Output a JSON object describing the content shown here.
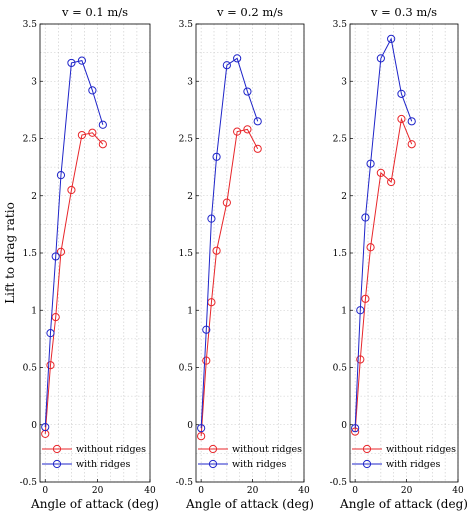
{
  "chart_data": [
    {
      "type": "line",
      "title": "v = 0.1 m/s",
      "xlabel": "Angle of attack (deg)",
      "ylabel": "Lift to drag ratio",
      "xlim": [
        -2,
        40
      ],
      "ylim": [
        -0.5,
        3.5
      ],
      "xticks": [
        "0",
        "20",
        "40"
      ],
      "yticks": [
        "-0.5",
        "0",
        "0.5",
        "1",
        "1.5",
        "2",
        "2.5",
        "3",
        "3.5"
      ],
      "grid": true,
      "legend": "bottom",
      "series": [
        {
          "name": "without ridges",
          "color": "#e8262a",
          "x": [
            0,
            2,
            4,
            6,
            10,
            14,
            18,
            22
          ],
          "y": [
            -0.08,
            0.52,
            0.94,
            1.51,
            2.05,
            2.53,
            2.55,
            2.45
          ]
        },
        {
          "name": "with ridges",
          "color": "#1f25c9",
          "x": [
            0,
            2,
            4,
            6,
            10,
            14,
            18,
            22
          ],
          "y": [
            -0.02,
            0.8,
            1.47,
            2.18,
            3.16,
            3.18,
            2.92,
            2.62
          ]
        }
      ]
    },
    {
      "type": "line",
      "title": "v = 0.2 m/s",
      "xlabel": "Angle of attack (deg)",
      "ylabel": "",
      "xlim": [
        -2,
        40
      ],
      "ylim": [
        -0.5,
        3.5
      ],
      "xticks": [
        "0",
        "20",
        "40"
      ],
      "yticks": [
        "-0.5",
        "0",
        "0.5",
        "1",
        "1.5",
        "2",
        "2.5",
        "3",
        "3.5"
      ],
      "grid": true,
      "legend": "bottom",
      "series": [
        {
          "name": "without ridges",
          "color": "#e8262a",
          "x": [
            0,
            2,
            4,
            6,
            10,
            14,
            18,
            22
          ],
          "y": [
            -0.1,
            0.56,
            1.07,
            1.52,
            1.94,
            2.56,
            2.58,
            2.41
          ]
        },
        {
          "name": "with ridges",
          "color": "#1f25c9",
          "x": [
            0,
            2,
            4,
            6,
            10,
            14,
            18,
            22
          ],
          "y": [
            -0.03,
            0.83,
            1.8,
            2.34,
            3.14,
            3.2,
            2.91,
            2.65
          ]
        }
      ]
    },
    {
      "type": "line",
      "title": "v = 0.3 m/s",
      "xlabel": "Angle of attack (deg)",
      "ylabel": "",
      "xlim": [
        -2,
        40
      ],
      "ylim": [
        -0.5,
        3.5
      ],
      "xticks": [
        "0",
        "20",
        "40"
      ],
      "yticks": [
        "-0.5",
        "0",
        "0.5",
        "1",
        "1.5",
        "2",
        "2.5",
        "3",
        "3.5"
      ],
      "grid": true,
      "legend": "bottom",
      "series": [
        {
          "name": "without ridges",
          "color": "#e8262a",
          "x": [
            0,
            2,
            4,
            6,
            10,
            14,
            18,
            22
          ],
          "y": [
            -0.06,
            0.57,
            1.1,
            1.55,
            2.2,
            2.12,
            2.67,
            2.45
          ]
        },
        {
          "name": "with ridges",
          "color": "#1f25c9",
          "x": [
            0,
            2,
            4,
            6,
            10,
            14,
            18,
            22
          ],
          "y": [
            -0.03,
            1.0,
            1.81,
            2.28,
            3.2,
            3.37,
            2.89,
            2.65
          ]
        }
      ]
    }
  ]
}
